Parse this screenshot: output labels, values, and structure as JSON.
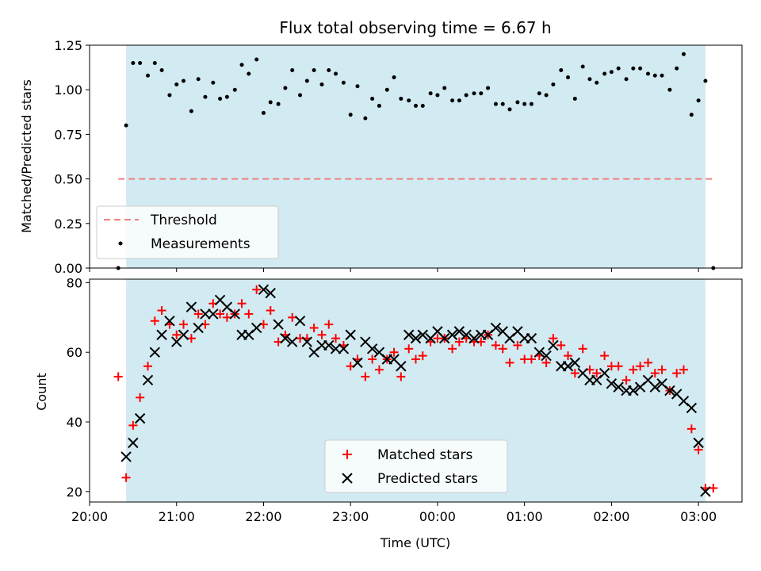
{
  "chart_data": [
    {
      "type": "scatter",
      "title": "Flux total observing time = 6.67 h",
      "ylabel": "Matched/Predicted stars",
      "xlabel": "",
      "x_unit": "hours since 20:00 UTC",
      "xlim": [
        0,
        7.5
      ],
      "ylim": [
        0,
        1.25
      ],
      "yticks": [
        "0.00",
        "0.25",
        "0.50",
        "0.75",
        "1.00",
        "1.25"
      ],
      "shaded_span": [
        0.42,
        7.08
      ],
      "shade_color": "#add8e6",
      "threshold": {
        "name": "Threshold",
        "value": 0.5,
        "x_range": [
          0.33,
          7.17
        ],
        "color": "#f08080"
      },
      "series": [
        {
          "name": "Measurements",
          "color": "#000000",
          "points": [
            [
              0.33,
              0.0
            ],
            [
              0.42,
              0.8
            ],
            [
              0.5,
              1.15
            ],
            [
              0.58,
              1.15
            ],
            [
              0.67,
              1.08
            ],
            [
              0.75,
              1.15
            ],
            [
              0.83,
              1.11
            ],
            [
              0.92,
              0.97
            ],
            [
              1.0,
              1.03
            ],
            [
              1.08,
              1.05
            ],
            [
              1.17,
              0.88
            ],
            [
              1.25,
              1.06
            ],
            [
              1.33,
              0.96
            ],
            [
              1.42,
              1.04
            ],
            [
              1.5,
              0.95
            ],
            [
              1.58,
              0.96
            ],
            [
              1.67,
              1.0
            ],
            [
              1.75,
              1.14
            ],
            [
              1.83,
              1.09
            ],
            [
              1.92,
              1.17
            ],
            [
              2.0,
              0.87
            ],
            [
              2.08,
              0.93
            ],
            [
              2.17,
              0.92
            ],
            [
              2.25,
              1.01
            ],
            [
              2.33,
              1.11
            ],
            [
              2.42,
              0.97
            ],
            [
              2.5,
              1.05
            ],
            [
              2.58,
              1.11
            ],
            [
              2.67,
              1.03
            ],
            [
              2.75,
              1.11
            ],
            [
              2.83,
              1.09
            ],
            [
              2.92,
              1.04
            ],
            [
              3.0,
              0.86
            ],
            [
              3.08,
              1.02
            ],
            [
              3.17,
              0.84
            ],
            [
              3.25,
              0.95
            ],
            [
              3.33,
              0.91
            ],
            [
              3.42,
              1.0
            ],
            [
              3.5,
              1.07
            ],
            [
              3.58,
              0.95
            ],
            [
              3.67,
              0.94
            ],
            [
              3.75,
              0.91
            ],
            [
              3.83,
              0.91
            ],
            [
              3.92,
              0.98
            ],
            [
              4.0,
              0.97
            ],
            [
              4.08,
              1.01
            ],
            [
              4.17,
              0.94
            ],
            [
              4.25,
              0.94
            ],
            [
              4.33,
              0.97
            ],
            [
              4.42,
              0.98
            ],
            [
              4.5,
              0.98
            ],
            [
              4.58,
              1.01
            ],
            [
              4.67,
              0.92
            ],
            [
              4.75,
              0.92
            ],
            [
              4.83,
              0.89
            ],
            [
              4.92,
              0.93
            ],
            [
              5.0,
              0.92
            ],
            [
              5.08,
              0.92
            ],
            [
              5.17,
              0.98
            ],
            [
              5.25,
              0.97
            ],
            [
              5.33,
              1.03
            ],
            [
              5.42,
              1.11
            ],
            [
              5.5,
              1.07
            ],
            [
              5.58,
              0.95
            ],
            [
              5.67,
              1.13
            ],
            [
              5.75,
              1.06
            ],
            [
              5.83,
              1.04
            ],
            [
              5.92,
              1.09
            ],
            [
              6.0,
              1.1
            ],
            [
              6.08,
              1.12
            ],
            [
              6.17,
              1.06
            ],
            [
              6.25,
              1.12
            ],
            [
              6.33,
              1.12
            ],
            [
              6.42,
              1.09
            ],
            [
              6.5,
              1.08
            ],
            [
              6.58,
              1.08
            ],
            [
              6.67,
              1.0
            ],
            [
              6.75,
              1.12
            ],
            [
              6.83,
              1.2
            ],
            [
              6.92,
              0.86
            ],
            [
              7.0,
              0.94
            ],
            [
              7.08,
              1.05
            ],
            [
              7.17,
              0.0
            ]
          ]
        }
      ]
    },
    {
      "type": "scatter",
      "title": "",
      "ylabel": "Count",
      "xlabel": "Time (UTC)",
      "x_unit": "hours since 20:00 UTC",
      "xlim": [
        0,
        7.5
      ],
      "ylim": [
        17,
        81
      ],
      "yticks": [
        "20",
        "40",
        "60",
        "80"
      ],
      "xticks": [
        {
          "value": 0,
          "label": "20:00"
        },
        {
          "value": 1,
          "label": "21:00"
        },
        {
          "value": 2,
          "label": "22:00"
        },
        {
          "value": 3,
          "label": "23:00"
        },
        {
          "value": 4,
          "label": "00:00"
        },
        {
          "value": 5,
          "label": "01:00"
        },
        {
          "value": 6,
          "label": "02:00"
        },
        {
          "value": 7,
          "label": "03:00"
        }
      ],
      "shaded_span": [
        0.42,
        7.08
      ],
      "shade_color": "#add8e6",
      "series": [
        {
          "name": "Matched stars",
          "marker": "plus",
          "color": "#ff0000",
          "points": [
            [
              0.33,
              53
            ],
            [
              0.42,
              24
            ],
            [
              0.5,
              39
            ],
            [
              0.58,
              47
            ],
            [
              0.67,
              56
            ],
            [
              0.75,
              69
            ],
            [
              0.83,
              72
            ],
            [
              0.92,
              68
            ],
            [
              1.0,
              65
            ],
            [
              1.08,
              68
            ],
            [
              1.17,
              64
            ],
            [
              1.25,
              71
            ],
            [
              1.33,
              68
            ],
            [
              1.42,
              74
            ],
            [
              1.5,
              71
            ],
            [
              1.58,
              70
            ],
            [
              1.67,
              71
            ],
            [
              1.75,
              74
            ],
            [
              1.83,
              71
            ],
            [
              1.92,
              78
            ],
            [
              2.0,
              68
            ],
            [
              2.08,
              72
            ],
            [
              2.17,
              63
            ],
            [
              2.25,
              65
            ],
            [
              2.33,
              70
            ],
            [
              2.42,
              64
            ],
            [
              2.5,
              64
            ],
            [
              2.58,
              67
            ],
            [
              2.67,
              65
            ],
            [
              2.75,
              68
            ],
            [
              2.83,
              64
            ],
            [
              2.92,
              62
            ],
            [
              3.0,
              56
            ],
            [
              3.08,
              58
            ],
            [
              3.17,
              53
            ],
            [
              3.25,
              58
            ],
            [
              3.33,
              55
            ],
            [
              3.42,
              58
            ],
            [
              3.5,
              60
            ],
            [
              3.58,
              53
            ],
            [
              3.67,
              61
            ],
            [
              3.75,
              58
            ],
            [
              3.83,
              59
            ],
            [
              3.92,
              63
            ],
            [
              4.0,
              64
            ],
            [
              4.08,
              64
            ],
            [
              4.17,
              61
            ],
            [
              4.25,
              63
            ],
            [
              4.33,
              64
            ],
            [
              4.42,
              63
            ],
            [
              4.5,
              63
            ],
            [
              4.58,
              65
            ],
            [
              4.67,
              62
            ],
            [
              4.75,
              61
            ],
            [
              4.83,
              57
            ],
            [
              4.92,
              62
            ],
            [
              5.0,
              58
            ],
            [
              5.08,
              58
            ],
            [
              5.17,
              59
            ],
            [
              5.25,
              57
            ],
            [
              5.33,
              64
            ],
            [
              5.42,
              62
            ],
            [
              5.5,
              59
            ],
            [
              5.58,
              54
            ],
            [
              5.67,
              61
            ],
            [
              5.75,
              55
            ],
            [
              5.83,
              54
            ],
            [
              5.92,
              59
            ],
            [
              6.0,
              56
            ],
            [
              6.08,
              56
            ],
            [
              6.17,
              52
            ],
            [
              6.25,
              55
            ],
            [
              6.33,
              56
            ],
            [
              6.42,
              57
            ],
            [
              6.5,
              54
            ],
            [
              6.58,
              55
            ],
            [
              6.67,
              49
            ],
            [
              6.75,
              54
            ],
            [
              6.83,
              55
            ],
            [
              6.92,
              38
            ],
            [
              7.0,
              32
            ],
            [
              7.08,
              21
            ],
            [
              7.17,
              21
            ]
          ]
        },
        {
          "name": "Predicted stars",
          "marker": "x",
          "color": "#000000",
          "points": [
            [
              0.42,
              30
            ],
            [
              0.5,
              34
            ],
            [
              0.58,
              41
            ],
            [
              0.67,
              52
            ],
            [
              0.75,
              60
            ],
            [
              0.83,
              65
            ],
            [
              0.92,
              69
            ],
            [
              1.0,
              63
            ],
            [
              1.08,
              65
            ],
            [
              1.17,
              73
            ],
            [
              1.25,
              67
            ],
            [
              1.33,
              71
            ],
            [
              1.42,
              71
            ],
            [
              1.5,
              75
            ],
            [
              1.58,
              73
            ],
            [
              1.67,
              71
            ],
            [
              1.75,
              65
            ],
            [
              1.83,
              65
            ],
            [
              1.92,
              67
            ],
            [
              2.0,
              78
            ],
            [
              2.08,
              77
            ],
            [
              2.17,
              68
            ],
            [
              2.25,
              64
            ],
            [
              2.33,
              63
            ],
            [
              2.42,
              69
            ],
            [
              2.5,
              63
            ],
            [
              2.58,
              60
            ],
            [
              2.67,
              62
            ],
            [
              2.75,
              62
            ],
            [
              2.83,
              61
            ],
            [
              2.92,
              61
            ],
            [
              3.0,
              65
            ],
            [
              3.08,
              57
            ],
            [
              3.17,
              63
            ],
            [
              3.25,
              61
            ],
            [
              3.33,
              60
            ],
            [
              3.42,
              58
            ],
            [
              3.5,
              58
            ],
            [
              3.58,
              56
            ],
            [
              3.67,
              65
            ],
            [
              3.75,
              64
            ],
            [
              3.83,
              65
            ],
            [
              3.92,
              64
            ],
            [
              4.0,
              66
            ],
            [
              4.08,
              64
            ],
            [
              4.17,
              65
            ],
            [
              4.25,
              66
            ],
            [
              4.33,
              65
            ],
            [
              4.42,
              64
            ],
            [
              4.5,
              65
            ],
            [
              4.58,
              65
            ],
            [
              4.67,
              67
            ],
            [
              4.75,
              66
            ],
            [
              4.83,
              64
            ],
            [
              4.92,
              66
            ],
            [
              5.0,
              64
            ],
            [
              5.08,
              64
            ],
            [
              5.17,
              60
            ],
            [
              5.25,
              59
            ],
            [
              5.33,
              62
            ],
            [
              5.42,
              56
            ],
            [
              5.5,
              56
            ],
            [
              5.58,
              57
            ],
            [
              5.67,
              54
            ],
            [
              5.75,
              52
            ],
            [
              5.83,
              52
            ],
            [
              5.92,
              54
            ],
            [
              6.0,
              51
            ],
            [
              6.08,
              50
            ],
            [
              6.17,
              49
            ],
            [
              6.25,
              49
            ],
            [
              6.33,
              50
            ],
            [
              6.42,
              52
            ],
            [
              6.5,
              50
            ],
            [
              6.58,
              51
            ],
            [
              6.67,
              49
            ],
            [
              6.75,
              48
            ],
            [
              6.83,
              46
            ],
            [
              6.92,
              44
            ],
            [
              7.0,
              34
            ],
            [
              7.08,
              20
            ]
          ]
        }
      ]
    }
  ],
  "legend_top": {
    "threshold_label": "Threshold",
    "measurements_label": "Measurements"
  },
  "legend_bottom": {
    "matched_label": "Matched stars",
    "predicted_label": "Predicted stars"
  }
}
